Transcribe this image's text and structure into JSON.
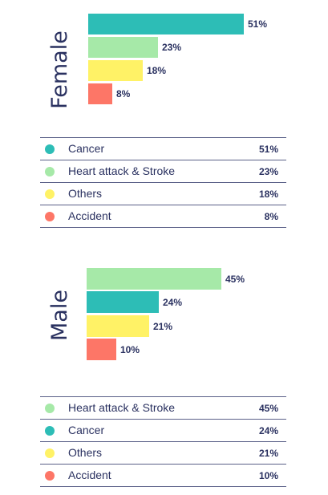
{
  "chart_data": [
    {
      "type": "bar",
      "orientation": "horizontal",
      "group": "Female",
      "categories": [
        "Cancer",
        "Heart attack & Stroke",
        "Others",
        "Accident"
      ],
      "values": [
        51,
        23,
        18,
        8
      ],
      "labels": [
        "51%",
        "23%",
        "18%",
        "8%"
      ],
      "colors": [
        "#2dbdb6",
        "#a6e9a8",
        "#fff266",
        "#fd7667"
      ],
      "legend": [
        {
          "name": "Cancer",
          "value": "51%",
          "color": "#2dbdb6"
        },
        {
          "name": "Heart attack & Stroke",
          "value": "23%",
          "color": "#a6e9a8"
        },
        {
          "name": "Others",
          "value": "18%",
          "color": "#fff266"
        },
        {
          "name": "Accident",
          "value": "8%",
          "color": "#fd7667"
        }
      ]
    },
    {
      "type": "bar",
      "orientation": "horizontal",
      "group": "Male",
      "categories": [
        "Heart attack & Stroke",
        "Cancer",
        "Others",
        "Accident"
      ],
      "values": [
        45,
        24,
        21,
        10
      ],
      "labels": [
        "45%",
        "24%",
        "21%",
        "10%"
      ],
      "colors": [
        "#a6e9a8",
        "#2dbdb6",
        "#fff266",
        "#fd7667"
      ],
      "legend": [
        {
          "name": "Heart attack & Stroke",
          "value": "45%",
          "color": "#a6e9a8"
        },
        {
          "name": "Cancer",
          "value": "24%",
          "color": "#2dbdb6"
        },
        {
          "name": "Others",
          "value": "21%",
          "color": "#fff266"
        },
        {
          "name": "Accident",
          "value": "10%",
          "color": "#fd7667"
        }
      ]
    }
  ]
}
